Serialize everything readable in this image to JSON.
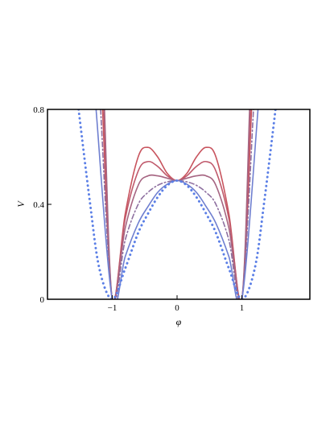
{
  "chart_data": {
    "type": "line",
    "xlabel": "φ",
    "ylabel": "V",
    "xlim": [
      -2.0,
      2.05
    ],
    "ylim": [
      0,
      0.8
    ],
    "xticks": [
      -1,
      0,
      1
    ],
    "xtick_labels": [
      "−1",
      "0",
      "1"
    ],
    "yticks": [
      0,
      0.4,
      0.8
    ],
    "ytick_labels": [
      "0",
      "0.4",
      "0.8"
    ],
    "grid": false,
    "legend": "none",
    "series": [
      {
        "style": "solid",
        "color": "#c8545e",
        "x": [
          -1.15,
          -1.0,
          -0.8,
          -0.6,
          -0.45,
          -0.3,
          -0.15,
          0,
          0.15,
          0.3,
          0.45,
          0.6,
          0.8,
          1.0,
          1.15
        ],
        "y": [
          0.8,
          0,
          0.36,
          0.6,
          0.64,
          0.6,
          0.53,
          0.5,
          0.53,
          0.6,
          0.64,
          0.6,
          0.36,
          0,
          0.8
        ]
      },
      {
        "style": "solid",
        "color": "#c05a6c",
        "x": [
          -1.13,
          -1.0,
          -0.8,
          -0.6,
          -0.45,
          -0.3,
          -0.15,
          0,
          0.15,
          0.3,
          0.45,
          0.6,
          0.8,
          1.0,
          1.13
        ],
        "y": [
          0.8,
          0,
          0.34,
          0.54,
          0.58,
          0.56,
          0.52,
          0.5,
          0.52,
          0.56,
          0.58,
          0.54,
          0.34,
          0,
          0.8
        ]
      },
      {
        "style": "solid",
        "color": "#a66582",
        "x": [
          -1.12,
          -1.0,
          -0.8,
          -0.6,
          -0.45,
          -0.3,
          -0.15,
          0,
          0.15,
          0.3,
          0.45,
          0.6,
          0.8,
          1.0,
          1.12
        ],
        "y": [
          0.8,
          0,
          0.3,
          0.48,
          0.52,
          0.52,
          0.51,
          0.5,
          0.51,
          0.52,
          0.52,
          0.48,
          0.3,
          0,
          0.8
        ]
      },
      {
        "style": "dashdot",
        "color": "#8e70a0",
        "x": [
          -1.18,
          -1.0,
          -0.8,
          -0.6,
          -0.45,
          -0.3,
          -0.15,
          0,
          0.15,
          0.3,
          0.45,
          0.6,
          0.8,
          1.0,
          1.18
        ],
        "y": [
          0.8,
          0,
          0.25,
          0.4,
          0.45,
          0.48,
          0.495,
          0.5,
          0.495,
          0.48,
          0.45,
          0.4,
          0.25,
          0,
          0.8
        ]
      },
      {
        "style": "solid",
        "color": "#6f7fd0",
        "x": [
          -1.25,
          -1.0,
          -0.8,
          -0.6,
          -0.45,
          -0.3,
          -0.15,
          0,
          0.15,
          0.3,
          0.45,
          0.6,
          0.8,
          1.0,
          1.25
        ],
        "y": [
          0.8,
          0,
          0.18,
          0.32,
          0.39,
          0.45,
          0.485,
          0.5,
          0.485,
          0.45,
          0.39,
          0.32,
          0.18,
          0,
          0.8
        ]
      },
      {
        "style": "dotted",
        "color": "#5b7fe6",
        "x": [
          -1.52,
          -1.35,
          -1.2,
          -1.0,
          -0.8,
          -0.6,
          -0.45,
          -0.3,
          -0.15,
          0,
          0.15,
          0.3,
          0.45,
          0.6,
          0.8,
          1.0,
          1.2,
          1.35,
          1.52
        ],
        "y": [
          0.8,
          0.42,
          0.13,
          0,
          0.13,
          0.28,
          0.36,
          0.43,
          0.48,
          0.5,
          0.48,
          0.43,
          0.36,
          0.28,
          0.13,
          0,
          0.13,
          0.42,
          0.8
        ]
      }
    ]
  }
}
